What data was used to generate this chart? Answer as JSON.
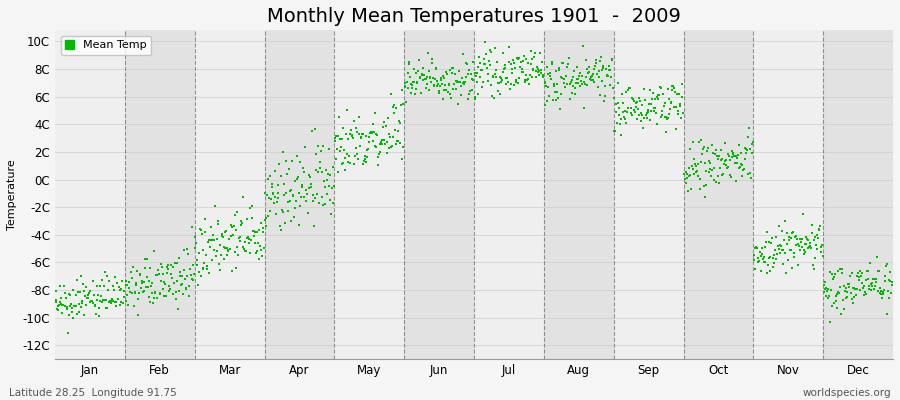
{
  "title": "Monthly Mean Temperatures 1901  -  2009",
  "ylabel": "Temperature",
  "xlabel_left": "Latitude 28.25  Longitude 91.75",
  "xlabel_right": "worldspecies.org",
  "legend_label": "Mean Temp",
  "ylim": [
    -13,
    10.8
  ],
  "yticks": [
    -12,
    -10,
    -8,
    -6,
    -4,
    -2,
    0,
    2,
    4,
    6,
    8,
    10
  ],
  "ytick_labels": [
    "-12C",
    "-10C",
    "-8C",
    "-6C",
    "-4C",
    "-2C",
    "0C",
    "2C",
    "4C",
    "6C",
    "8C",
    "10C"
  ],
  "months": [
    "Jan",
    "Feb",
    "Mar",
    "Apr",
    "May",
    "Jun",
    "Jul",
    "Aug",
    "Sep",
    "Oct",
    "Nov",
    "Dec"
  ],
  "month_means": [
    -9.2,
    -8.0,
    -5.5,
    -1.5,
    2.5,
    7.0,
    7.5,
    7.0,
    5.0,
    0.5,
    -5.5,
    -8.2
  ],
  "month_stds": [
    0.7,
    0.9,
    1.2,
    1.5,
    1.2,
    0.8,
    0.7,
    0.8,
    0.8,
    1.0,
    0.9,
    0.8
  ],
  "month_trend": [
    0.01,
    0.01,
    0.015,
    0.015,
    0.01,
    0.005,
    0.005,
    0.005,
    0.005,
    0.01,
    0.01,
    0.01
  ],
  "n_years": 109,
  "start_year": 1901,
  "dot_color": "#00bb00",
  "dot_size": 3.5,
  "bg_color": "#f5f5f5",
  "plot_bg_color_light": "#efefef",
  "plot_bg_color_dark": "#e2e2e2",
  "title_fontsize": 14,
  "axis_fontsize": 8,
  "tick_fontsize": 8.5,
  "legend_fontsize": 8,
  "footer_fontsize": 7.5,
  "grid_color": "#555555",
  "random_seed": 12345
}
